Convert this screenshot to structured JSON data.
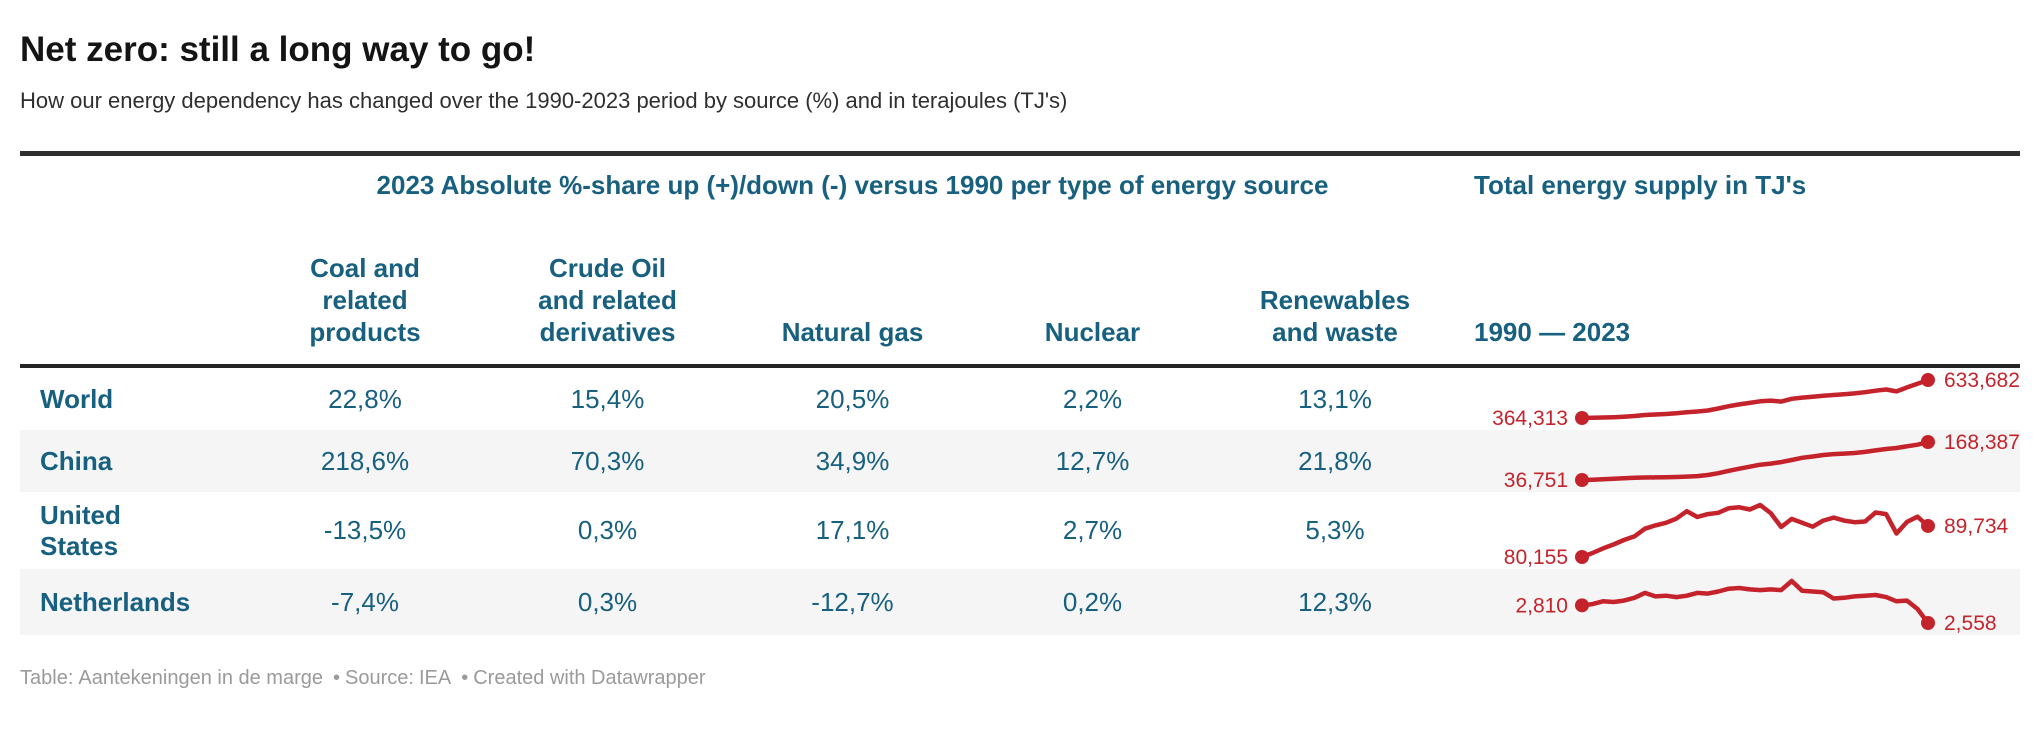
{
  "header": {
    "title": "Net zero: still a long way to go!",
    "subtitle": "How our energy dependency has changed over the 1990-2023 period by source (%) and in terajoules (TJ's)"
  },
  "table": {
    "group_headers": {
      "pct": "2023 Absolute %-share up (+)/down (-) versus 1990 per type of energy source",
      "tj": "Total energy supply in TJ's"
    },
    "columns": [
      "Coal and\nrelated\nproducts",
      "Crude Oil\nand related\nderivatives",
      "Natural gas",
      "Nuclear",
      "Renewables\nand waste"
    ],
    "spark_header": "1990 — 2023",
    "rows": [
      {
        "label": "World",
        "values": [
          "22,8%",
          "15,4%",
          "20,5%",
          "2,2%",
          "13,1%"
        ]
      },
      {
        "label": "China",
        "values": [
          "218,6%",
          "70,3%",
          "34,9%",
          "12,7%",
          "21,8%"
        ]
      },
      {
        "label": "United States",
        "values": [
          "-13,5%",
          "0,3%",
          "17,1%",
          "2,7%",
          "5,3%"
        ]
      },
      {
        "label": "Netherlands",
        "values": [
          "-7,4%",
          "0,3%",
          "-12,7%",
          "0,2%",
          "12,3%"
        ]
      }
    ]
  },
  "footer": {
    "table_prefix": "Table:",
    "table_byline": "Aantekeningen in de marge",
    "separator": "•",
    "source_prefix": "Source:",
    "source": "IEA",
    "credit": "Created with Datawrapper"
  },
  "colors": {
    "accent_teal": "#17607f",
    "spark_red": "#c5232b",
    "stripe": "#f5f5f5",
    "rule": "#2f2f2f",
    "footer_gray": "#9a9a9a"
  },
  "chart_data": [
    {
      "type": "line",
      "name": "World — Total energy supply (TJ)",
      "x_range": [
        1990,
        2023
      ],
      "start_label": "364,313",
      "end_label": "633,682",
      "start_value": 364313,
      "end_value": 633682,
      "values": [
        364313,
        366400,
        368100,
        370000,
        373400,
        378800,
        385500,
        389100,
        392700,
        398000,
        405200,
        410700,
        417800,
        431400,
        447700,
        460800,
        471700,
        482600,
        487800,
        480600,
        500100,
        508800,
        515200,
        522700,
        527500,
        532300,
        538600,
        547000,
        557800,
        566500,
        552900,
        581200,
        607400,
        633682
      ]
    },
    {
      "type": "line",
      "name": "China — Total energy supply (TJ)",
      "x_range": [
        1990,
        2023
      ],
      "start_label": "36,751",
      "end_label": "168,387",
      "start_value": 36751,
      "end_value": 168387,
      "values": [
        36751,
        37900,
        39200,
        41000,
        42500,
        44300,
        45400,
        45900,
        46300,
        47200,
        48600,
        50400,
        53900,
        60400,
        68700,
        75900,
        82800,
        89600,
        93400,
        98800,
        105900,
        113800,
        118200,
        123400,
        126300,
        128100,
        130400,
        134200,
        139400,
        144300,
        147600,
        153400,
        158900,
        168387
      ]
    },
    {
      "type": "line",
      "name": "United States — Total energy supply (TJ)",
      "x_range": [
        1990,
        2023
      ],
      "start_label": "80,155",
      "end_label": "89,734",
      "start_value": 80155,
      "end_value": 89734,
      "values": [
        80155,
        81400,
        82800,
        84000,
        85400,
        86500,
        88900,
        89900,
        90700,
        92000,
        94300,
        92500,
        93400,
        93800,
        95200,
        95500,
        94800,
        96200,
        93700,
        89400,
        91900,
        90700,
        89500,
        91400,
        92300,
        91400,
        90900,
        91100,
        93900,
        93400,
        87400,
        91000,
        92600,
        89734
      ]
    },
    {
      "type": "line",
      "name": "Netherlands — Total energy supply (TJ)",
      "x_range": [
        1990,
        2023
      ],
      "start_label": "2,810",
      "end_label": "2,558",
      "start_value": 2810,
      "end_value": 2558,
      "values": [
        2810,
        2828,
        2868,
        2858,
        2878,
        2918,
        2988,
        2938,
        2948,
        2928,
        2948,
        2988,
        2978,
        3008,
        3048,
        3058,
        3038,
        3028,
        3038,
        3028,
        3158,
        3018,
        3008,
        2998,
        2908,
        2918,
        2938,
        2948,
        2958,
        2928,
        2868,
        2878,
        2758,
        2558
      ]
    }
  ]
}
